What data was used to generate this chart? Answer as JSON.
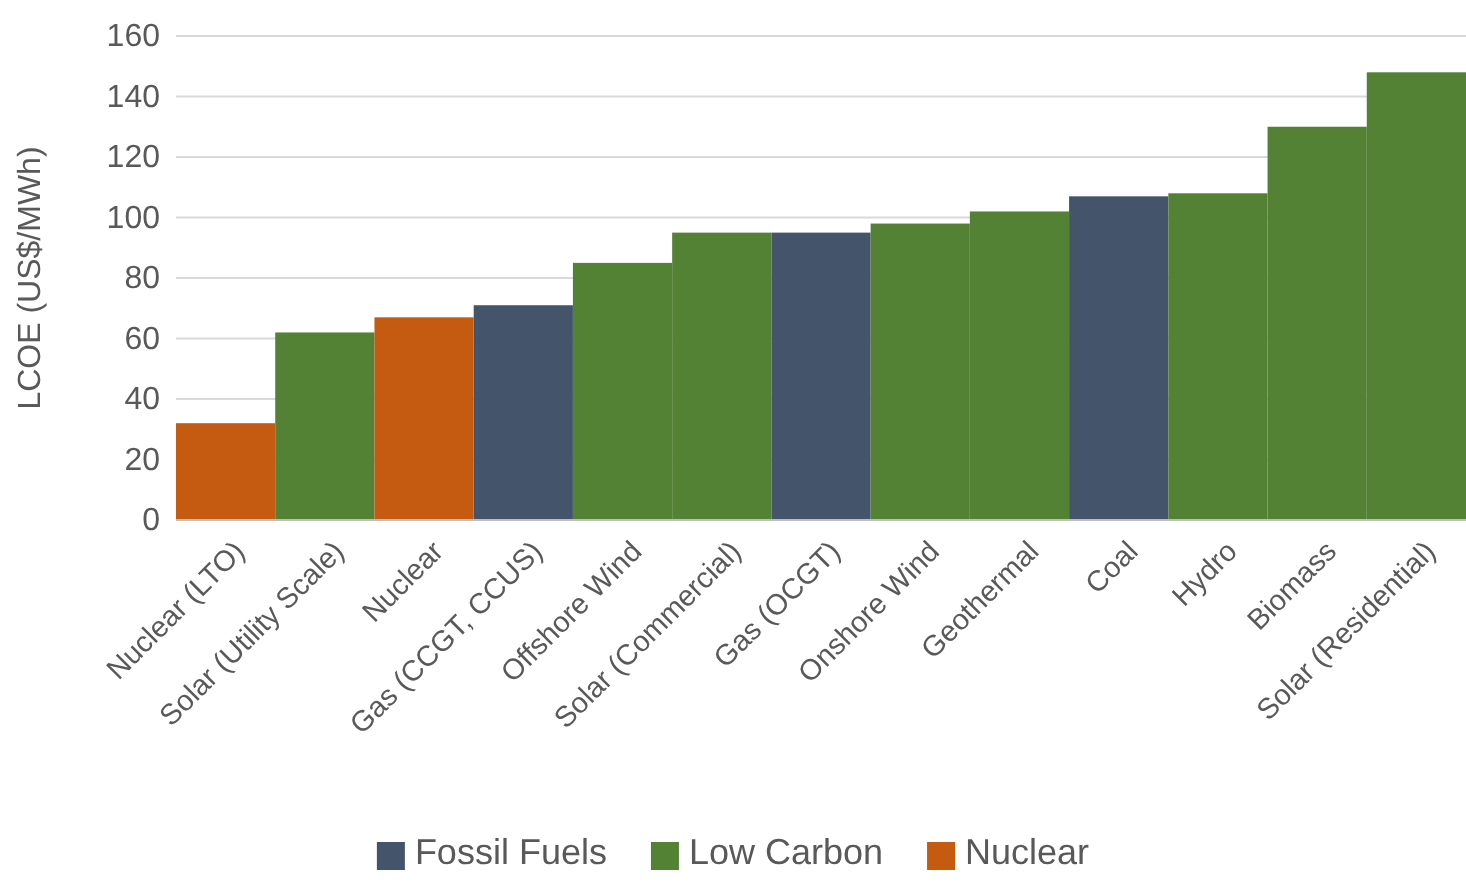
{
  "chart_data": {
    "type": "bar",
    "ylabel": "LCOE (US$/MWh)",
    "categories": [
      "Nuclear (LTO)",
      "Solar (Utility Scale)",
      "Nuclear",
      "Gas (CCGT, CCUS)",
      "Offshore Wind",
      "Solar (Commercial)",
      "Gas (OCGT)",
      "Onshore Wind",
      "Geothermal",
      "Coal",
      "Hydro",
      "Biomass",
      "Solar (Residential)"
    ],
    "series": [
      {
        "name": "Fossil Fuels",
        "color": "#44546a",
        "values": [
          null,
          null,
          null,
          71,
          null,
          null,
          95,
          null,
          null,
          107,
          null,
          null,
          null
        ]
      },
      {
        "name": "Low Carbon",
        "color": "#548235",
        "values": [
          null,
          62,
          null,
          null,
          85,
          95,
          null,
          98,
          102,
          null,
          108,
          130,
          148
        ]
      },
      {
        "name": "Nuclear",
        "color": "#c55a11",
        "values": [
          32,
          null,
          67,
          null,
          null,
          null,
          null,
          null,
          null,
          null,
          null,
          null,
          null
        ]
      }
    ],
    "ylim": [
      0,
      160
    ],
    "yticks": [
      0,
      20,
      40,
      60,
      80,
      100,
      120,
      140,
      160
    ],
    "grid": "y",
    "legend": "bottom"
  }
}
